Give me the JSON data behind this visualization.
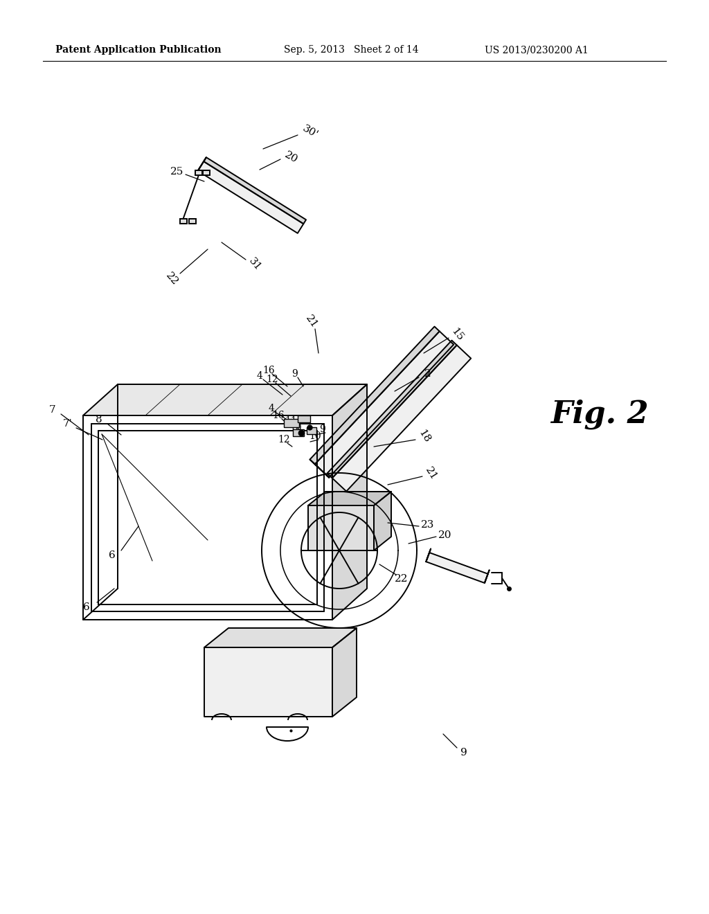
{
  "background_color": "#ffffff",
  "header_left": "Patent Application Publication",
  "header_center": "Sep. 5, 2013   Sheet 2 of 14",
  "header_right": "US 2013/0230200 A1",
  "fig_label": "Fig. 2",
  "header_fontsize": 10,
  "fig_label_fontsize": 32,
  "lw": 1.4
}
